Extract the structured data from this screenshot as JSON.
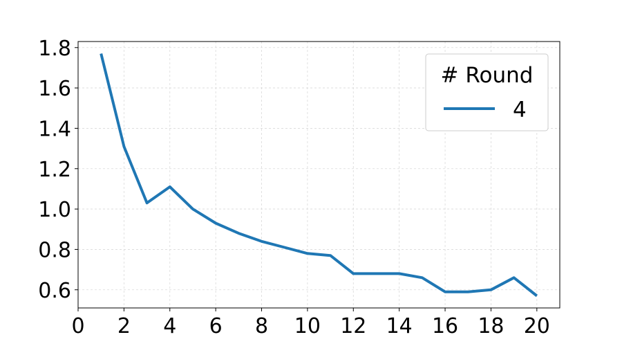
{
  "chart_data": {
    "type": "line",
    "title": "",
    "xlabel": "",
    "ylabel": "",
    "xlim": [
      0,
      21
    ],
    "ylim": [
      0.51,
      1.83
    ],
    "xticks": [
      0,
      2,
      4,
      6,
      8,
      10,
      12,
      14,
      16,
      18,
      20
    ],
    "yticks": [
      0.6,
      0.8,
      1.0,
      1.2,
      1.4,
      1.6,
      1.8
    ],
    "grid": true,
    "legend": {
      "title": "# Round",
      "placement": "top-right"
    },
    "series": [
      {
        "name": "4",
        "color": "#1f77b4",
        "x": [
          1,
          2,
          3,
          4,
          5,
          6,
          7,
          8,
          9,
          10,
          11,
          12,
          13,
          14,
          15,
          16,
          17,
          18,
          19,
          20
        ],
        "y": [
          1.77,
          1.31,
          1.03,
          1.11,
          1.0,
          0.93,
          0.88,
          0.84,
          0.81,
          0.78,
          0.77,
          0.68,
          0.68,
          0.68,
          0.66,
          0.59,
          0.59,
          0.6,
          0.66,
          0.57
        ]
      }
    ]
  }
}
